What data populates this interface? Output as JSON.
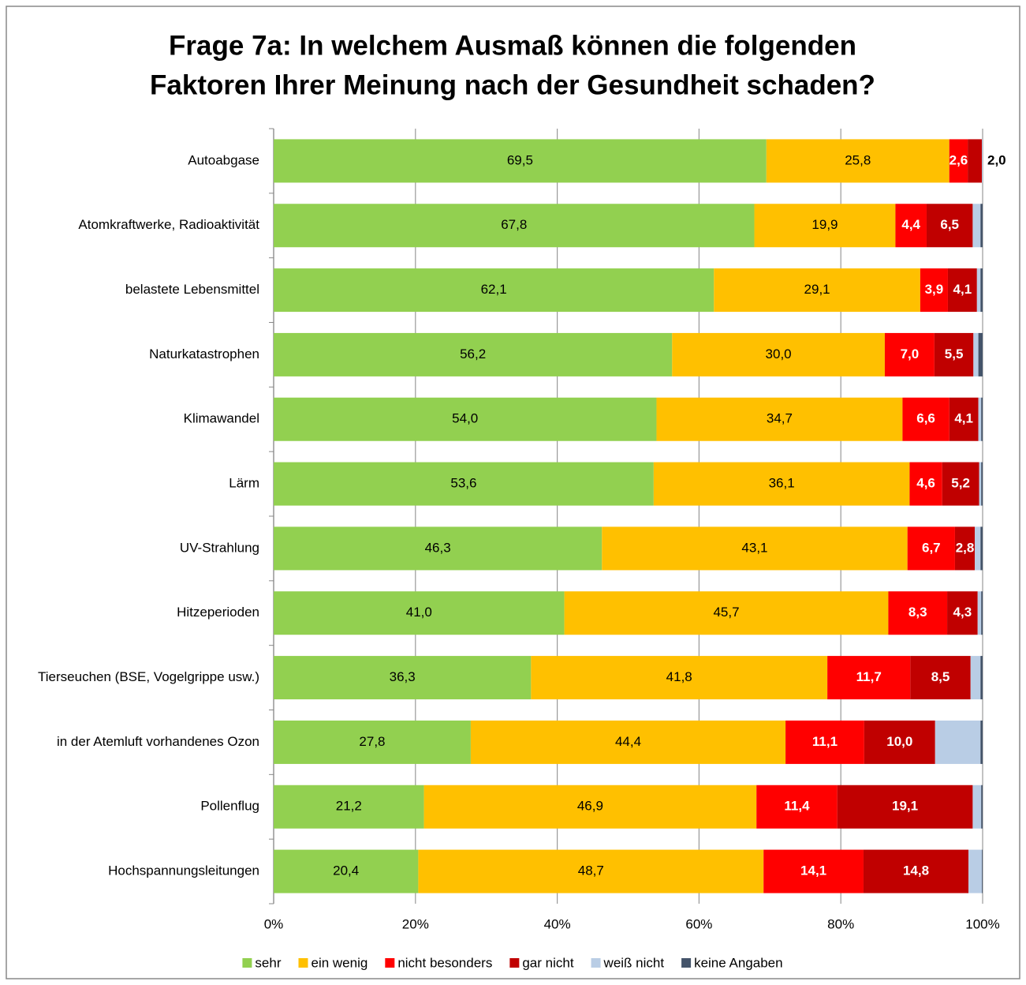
{
  "chart_data": {
    "type": "stacked_barh",
    "title": [
      "Frage 7a: In welchem Ausmaß können die folgenden",
      "Faktoren Ihrer Meinung nach der Gesundheit schaden?"
    ],
    "categories": [
      "Autoabgase",
      "Atomkraftwerke, Radioaktivität",
      "belastete Lebensmittel",
      "Naturkatastrophen",
      "Klimawandel",
      "Lärm",
      "UV-Strahlung",
      "Hitzeperioden",
      "Tierseuchen (BSE, Vogelgrippe usw.)",
      "in der Atemluft vorhandenes Ozon",
      "Pollenflug",
      "Hochspannungsleitungen"
    ],
    "series": [
      {
        "name": "sehr",
        "color": "#92d050",
        "values": [
          69.5,
          67.8,
          62.1,
          56.2,
          54.0,
          53.6,
          46.3,
          41.0,
          36.3,
          27.8,
          21.2,
          20.4
        ],
        "value_labels": [
          "69,5",
          "67,8",
          "62,1",
          "56,2",
          "54,0",
          "53,6",
          "46,3",
          "41,0",
          "36,3",
          "27,8",
          "21,2",
          "20,4"
        ]
      },
      {
        "name": "ein wenig",
        "color": "#ffc000",
        "values": [
          25.8,
          19.9,
          29.1,
          30.0,
          34.7,
          36.1,
          43.1,
          45.7,
          41.8,
          44.4,
          46.9,
          48.7
        ],
        "value_labels": [
          "25,8",
          "19,9",
          "29,1",
          "30,0",
          "34,7",
          "36,1",
          "43,1",
          "45,7",
          "41,8",
          "44,4",
          "46,9",
          "48,7"
        ]
      },
      {
        "name": "nicht besonders",
        "color": "#ff0000",
        "values": [
          2.6,
          4.4,
          3.9,
          7.0,
          6.6,
          4.6,
          6.7,
          8.3,
          11.7,
          11.1,
          11.4,
          14.1
        ],
        "value_labels": [
          "2,6",
          "4,4",
          "3,9",
          "7,0",
          "6,6",
          "4,6",
          "6,7",
          "8,3",
          "11,7",
          "11,1",
          "11,4",
          "14,1"
        ]
      },
      {
        "name": "gar nicht",
        "color": "#c00000",
        "values": [
          2.0,
          6.5,
          4.1,
          5.5,
          4.1,
          5.2,
          2.8,
          4.3,
          8.5,
          10.0,
          19.1,
          14.8
        ],
        "value_labels": [
          "2,0",
          "6,5",
          "4,1",
          "5,5",
          "4,1",
          "5,2",
          "2,8",
          "4,3",
          "8,5",
          "10,0",
          "19,1",
          "14,8"
        ]
      },
      {
        "name": "weiß nicht",
        "color": "#b9cde5",
        "values": [
          0.1,
          1.1,
          0.5,
          0.7,
          0.4,
          0.3,
          0.8,
          0.5,
          1.4,
          6.4,
          1.2,
          1.9
        ]
      },
      {
        "name": "keine Angaben",
        "color": "#44546a",
        "values": [
          0.0,
          0.3,
          0.3,
          0.6,
          0.2,
          0.2,
          0.3,
          0.2,
          0.3,
          0.3,
          0.2,
          0.1
        ]
      }
    ],
    "xlim": [
      0,
      100
    ],
    "xticks": [
      {
        "value": 0,
        "label": "0%"
      },
      {
        "value": 20,
        "label": "20%"
      },
      {
        "value": 40,
        "label": "40%"
      },
      {
        "value": 60,
        "label": "60%"
      },
      {
        "value": 80,
        "label": "80%"
      },
      {
        "value": 100,
        "label": "100%"
      }
    ],
    "grid": true,
    "legend": "bottom"
  }
}
